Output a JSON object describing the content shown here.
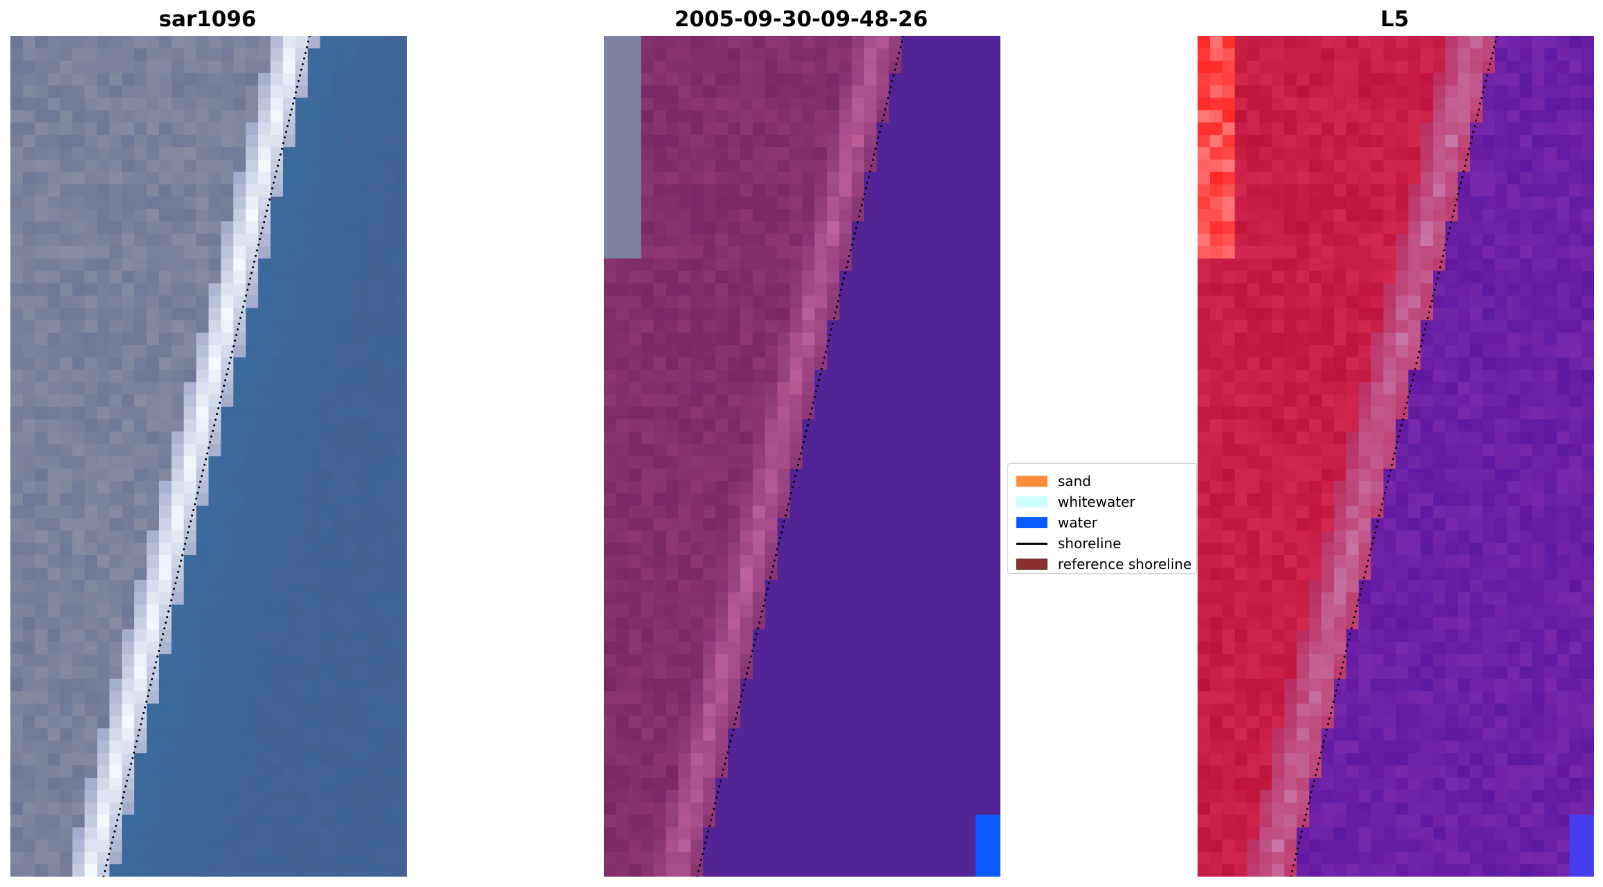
{
  "panels": [
    {
      "title": "sar1096",
      "kind": "rgb"
    },
    {
      "title": "2005-09-30-09-48-26",
      "kind": "classified"
    },
    {
      "title": "L5",
      "kind": "index"
    }
  ],
  "legend": {
    "items": [
      {
        "label": "sand",
        "color": "#ff8c3b",
        "type": "patch"
      },
      {
        "label": "whitewater",
        "color": "#ccffff",
        "type": "patch"
      },
      {
        "label": "water",
        "color": "#0a5bff",
        "type": "patch"
      },
      {
        "label": "shoreline",
        "color": "#000000",
        "type": "line"
      },
      {
        "label": "reference shoreline",
        "color": "#8b2e2e",
        "type": "patch"
      }
    ]
  }
}
